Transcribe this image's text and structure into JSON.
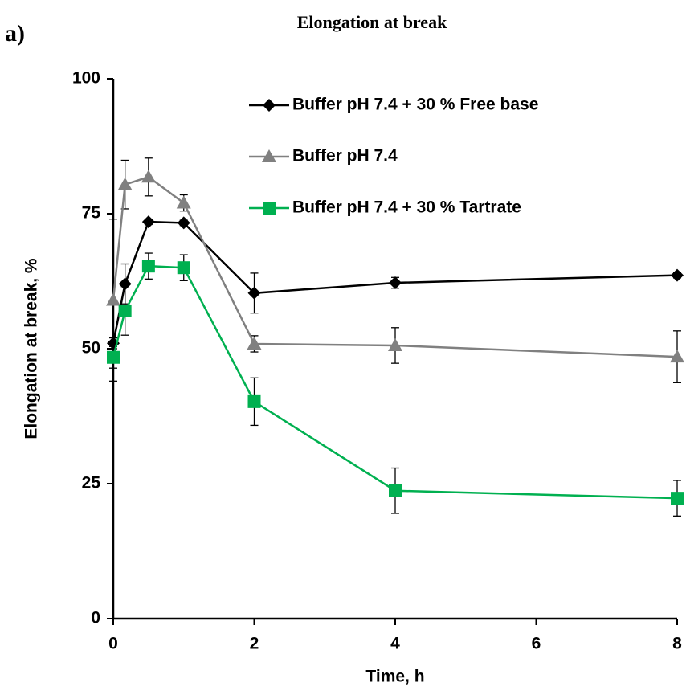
{
  "panel_label": "a)",
  "chart_data": {
    "type": "line",
    "title": "Elongation at break",
    "x_label": "Time, h",
    "y_label": "Elongation at break, %",
    "xlim": [
      0,
      8
    ],
    "xticks": [
      0,
      2,
      4,
      6,
      8
    ],
    "ylim": [
      0,
      100
    ],
    "yticks": [
      0,
      25,
      50,
      75,
      100
    ],
    "legend": "top-right",
    "x": [
      0,
      0.167,
      0.5,
      1,
      2,
      4,
      8
    ],
    "series": [
      {
        "name": "Buffer pH 7.4 + 30 % Free base",
        "color": "#000000",
        "marker": "diamond",
        "values": [
          51,
          62,
          73.5,
          73.3,
          60.3,
          62.2,
          63.6
        ],
        "errors": [
          1,
          3.7,
          0.5,
          0.5,
          3.7,
          1,
          0.5
        ]
      },
      {
        "name": "Buffer pH 7.4",
        "color": "#808080",
        "marker": "triangle",
        "values": [
          59,
          80.4,
          81.8,
          77,
          50.9,
          50.6,
          48.5
        ],
        "errors": [
          15,
          4.5,
          3.5,
          1.5,
          1.5,
          3.3,
          4.8
        ]
      },
      {
        "name": "Buffer pH 7.4 + 30 % Tartrate",
        "color": "#00b050",
        "marker": "square",
        "values": [
          48.4,
          57,
          65.3,
          65,
          40.2,
          23.7,
          22.3
        ],
        "errors": [
          2,
          4.5,
          2.4,
          2.4,
          4.4,
          4.2,
          3.3
        ]
      }
    ]
  }
}
